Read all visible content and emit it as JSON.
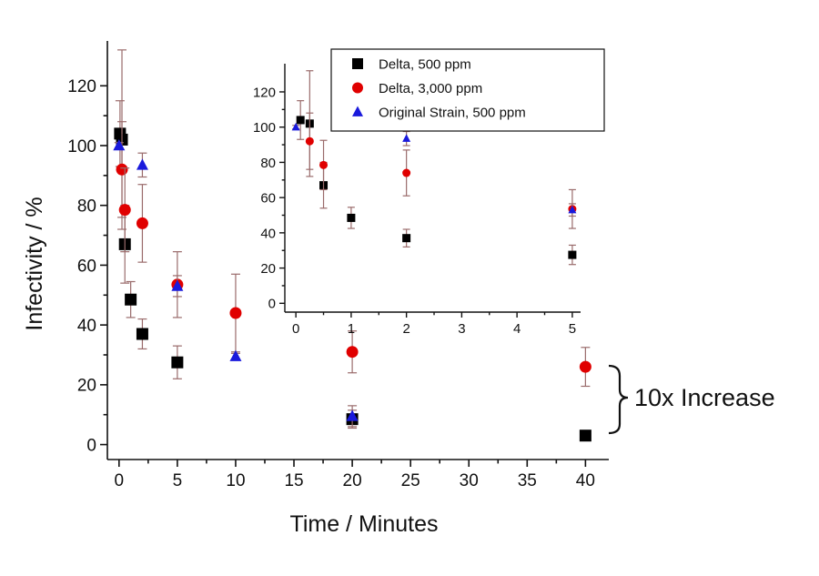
{
  "chart_data": [
    {
      "type": "scatter",
      "xlabel": "Time / Minutes",
      "ylabel": "Infectivity / %",
      "xlim": [
        -1,
        42
      ],
      "ylim": [
        -5,
        135
      ],
      "xticks": [
        0,
        5,
        10,
        15,
        20,
        25,
        30,
        35,
        40
      ],
      "yticks": [
        0,
        20,
        40,
        60,
        80,
        100,
        120
      ],
      "error_bar_color": "#9a6b6b",
      "series": [
        {
          "name": "Delta, 500 ppm",
          "marker": "square",
          "color": "#000000",
          "points": [
            {
              "x": 0.083,
              "y": 104,
              "err": 11
            },
            {
              "x": 0.25,
              "y": 102,
              "err": 30
            },
            {
              "x": 0.5,
              "y": 67,
              "err": 13
            },
            {
              "x": 1,
              "y": 48.5,
              "err": 6
            },
            {
              "x": 2,
              "y": 37,
              "err": 5
            },
            {
              "x": 5,
              "y": 27.5,
              "err": 5.5
            },
            {
              "x": 20,
              "y": 8.5,
              "err": 3
            },
            {
              "x": 40,
              "y": 3,
              "err": 1
            }
          ]
        },
        {
          "name": "Delta, 3,000 ppm",
          "marker": "circle",
          "color": "#e00000",
          "points": [
            {
              "x": 0.25,
              "y": 92,
              "err": 16
            },
            {
              "x": 0.5,
              "y": 78.5,
              "err": 14
            },
            {
              "x": 2,
              "y": 74,
              "err": 13
            },
            {
              "x": 5,
              "y": 53.5,
              "err": 11
            },
            {
              "x": 10,
              "y": 44,
              "err": 13
            },
            {
              "x": 20,
              "y": 31,
              "err": 7
            },
            {
              "x": 40,
              "y": 26,
              "err": 6.5
            }
          ]
        },
        {
          "name": "Original Strain, 500 ppm",
          "marker": "triangle",
          "color": "#1a1adc",
          "points": [
            {
              "x": 0,
              "y": 100,
              "err": 1
            },
            {
              "x": 2,
              "y": 93.5,
              "err": 4
            },
            {
              "x": 5,
              "y": 53,
              "err": 3.5
            },
            {
              "x": 10,
              "y": 29.5,
              "err": 1
            },
            {
              "x": 20,
              "y": 9.5,
              "err": 3.5
            }
          ]
        }
      ]
    },
    {
      "type": "scatter",
      "xlim": [
        -0.2,
        5.15
      ],
      "ylim": [
        -5,
        136
      ],
      "xticks": [
        0,
        1,
        2,
        3,
        4,
        5
      ],
      "yticks": [
        0,
        20,
        40,
        60,
        80,
        100,
        120
      ],
      "legend": "top",
      "note": "inset zoom of first 5 minutes; uses same series as main chart"
    }
  ],
  "annotation": {
    "text": "10x Increase"
  }
}
